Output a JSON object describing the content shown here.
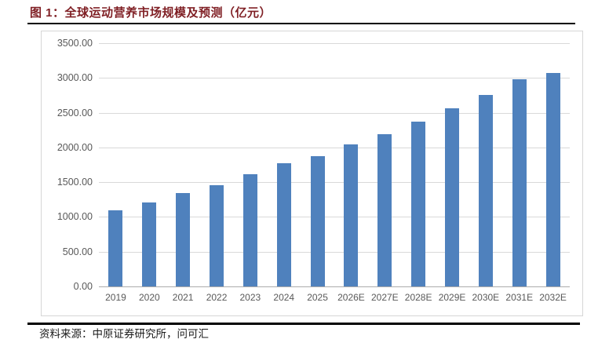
{
  "figure": {
    "title": "图 1：全球运动营养市场规模及预测（亿元）",
    "source": "资料来源：中原证券研究所，问可汇"
  },
  "colors": {
    "bar": "#4F81BD",
    "title_text": "#7F1F24",
    "axis_text": "#595959",
    "gridline": "#D9D9D9",
    "axis_line": "#ACACAC",
    "chart_border": "#D6D6D6",
    "rule": "#000000",
    "source_text": "#1A1A1A"
  },
  "chart_data": {
    "type": "bar",
    "title": "全球运动营养市场规模及预测（亿元）",
    "categories": [
      "2019",
      "2020",
      "2021",
      "2022",
      "2023",
      "2024",
      "2025",
      "2026E",
      "2027E",
      "2028E",
      "2029E",
      "2030E",
      "2031E",
      "2032E"
    ],
    "values": [
      1100,
      1210,
      1340,
      1460,
      1615,
      1770,
      1880,
      2040,
      2195,
      2370,
      2565,
      2760,
      2985,
      3070
    ],
    "xlabel": "",
    "ylabel": "",
    "ylim": [
      0,
      3500
    ],
    "ytick_step": 500,
    "yticks": [
      "3500.00",
      "3000.00",
      "2500.00",
      "2000.00",
      "1500.00",
      "1000.00",
      "500.00",
      "0.00"
    ],
    "grid": true,
    "legend": false,
    "unit": "亿元"
  }
}
